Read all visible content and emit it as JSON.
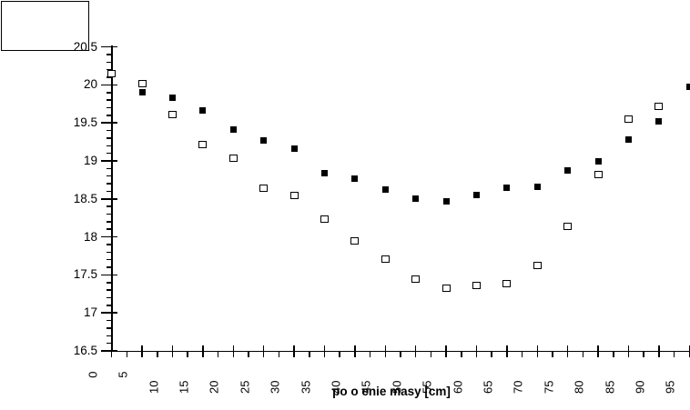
{
  "chart_data": {
    "type": "scatter",
    "title": "",
    "xlabel": "po o enie masy [cm]",
    "ylabel": "",
    "xlim": [
      0,
      95
    ],
    "ylim": [
      16.5,
      20.5
    ],
    "x_major_tick_step": 5,
    "x_minor_tick_step": 2.5,
    "y_major_tick_step": 0.5,
    "y_minor_tick_step": 0.1,
    "grid": false,
    "x_tick_labels": [
      "0",
      "5",
      "10",
      "15",
      "20",
      "25",
      "30",
      "35",
      "40",
      "45",
      "50",
      "55",
      "60",
      "65",
      "70",
      "75",
      "80",
      "85",
      "90",
      "95"
    ],
    "y_tick_labels": [
      "16.5",
      "17",
      "17.5",
      "18",
      "18.5",
      "19",
      "19.5",
      "20",
      "20.5"
    ],
    "legend": {
      "present": true,
      "empty": true,
      "position": "top-left",
      "entries": []
    },
    "colors": {
      "foreground": "#000000",
      "background": "#ffffff"
    },
    "series": [
      {
        "name": "filled-squares",
        "marker": "filled-square",
        "color": "#000000",
        "points": [
          [
            5,
            19.9
          ],
          [
            10,
            19.83
          ],
          [
            15,
            19.66
          ],
          [
            20,
            19.41
          ],
          [
            25,
            19.27
          ],
          [
            30,
            19.16
          ],
          [
            35,
            18.84
          ],
          [
            40,
            18.77
          ],
          [
            45,
            18.62
          ],
          [
            50,
            18.5
          ],
          [
            55,
            18.47
          ],
          [
            60,
            18.55
          ],
          [
            65,
            18.65
          ],
          [
            70,
            18.66
          ],
          [
            75,
            18.88
          ],
          [
            80,
            19.0
          ],
          [
            85,
            19.28
          ],
          [
            90,
            19.52
          ],
          [
            95,
            19.98
          ]
        ]
      },
      {
        "name": "open-squares",
        "marker": "open-square",
        "color": "#000000",
        "fill": "#ffffff",
        "points": [
          [
            0,
            20.15
          ],
          [
            5,
            20.02
          ],
          [
            10,
            19.61
          ],
          [
            15,
            19.22
          ],
          [
            20,
            19.03
          ],
          [
            25,
            18.64
          ],
          [
            30,
            18.54
          ],
          [
            35,
            18.24
          ],
          [
            40,
            17.95
          ],
          [
            45,
            17.71
          ],
          [
            50,
            17.45
          ],
          [
            55,
            17.32
          ],
          [
            60,
            17.36
          ],
          [
            65,
            17.39
          ],
          [
            70,
            17.62
          ],
          [
            75,
            18.14
          ],
          [
            80,
            18.82
          ],
          [
            85,
            19.55
          ],
          [
            90,
            19.72
          ]
        ]
      }
    ]
  }
}
